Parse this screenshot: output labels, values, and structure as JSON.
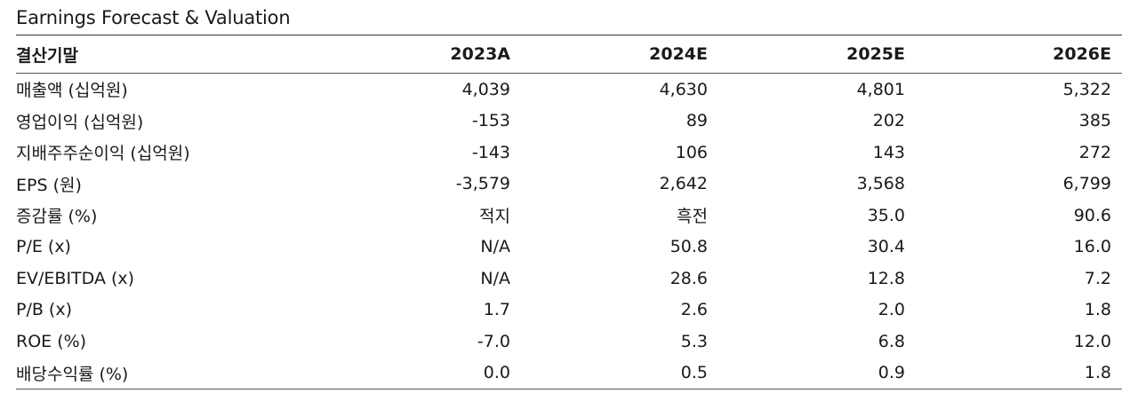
{
  "title": "Earnings Forecast & Valuation",
  "table": {
    "header": [
      "결산기말",
      "2023A",
      "2024E",
      "2025E",
      "2026E"
    ],
    "rows": [
      [
        "매출액 (십억원)",
        "4,039",
        "4,630",
        "4,801",
        "5,322"
      ],
      [
        "영업이익 (십억원)",
        "-153",
        "89",
        "202",
        "385"
      ],
      [
        "지배주주순이익 (십억원)",
        "-143",
        "106",
        "143",
        "272"
      ],
      [
        "EPS (원)",
        "-3,579",
        "2,642",
        "3,568",
        "6,799"
      ],
      [
        "증감률 (%)",
        "적지",
        "흑전",
        "35.0",
        "90.6"
      ],
      [
        "P/E (x)",
        "N/A",
        "50.8",
        "30.4",
        "16.0"
      ],
      [
        "EV/EBITDA (x)",
        "N/A",
        "28.6",
        "12.8",
        "7.2"
      ],
      [
        "P/B (x)",
        "1.7",
        "2.6",
        "2.0",
        "1.8"
      ],
      [
        "ROE (%)",
        "-7.0",
        "5.3",
        "6.8",
        "12.0"
      ],
      [
        "배당수익률 (%)",
        "0.0",
        "0.5",
        "0.9",
        "1.8"
      ]
    ]
  }
}
